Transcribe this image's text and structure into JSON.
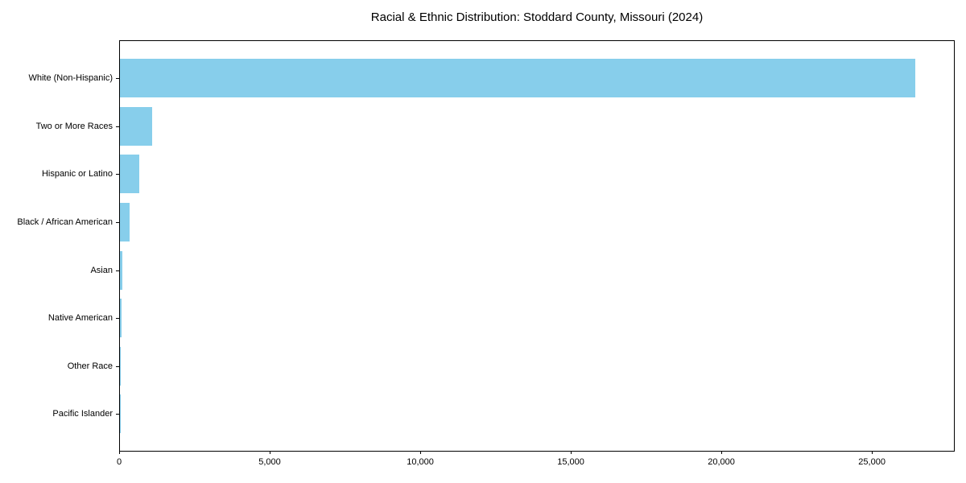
{
  "chart_data": {
    "type": "bar",
    "orientation": "horizontal",
    "title": "Racial & Ethnic Distribution: Stoddard County, Missouri (2024)",
    "categories": [
      "White (Non-Hispanic)",
      "Two or More Races",
      "Hispanic or Latino",
      "Black / African American",
      "Asian",
      "Native American",
      "Other Race",
      "Pacific Islander"
    ],
    "values": [
      26400,
      1060,
      635,
      330,
      90,
      55,
      30,
      10
    ],
    "xlabel": "",
    "ylabel": "",
    "xlim": [
      0,
      27750
    ],
    "x_ticks": [
      {
        "value": 0,
        "label": "0"
      },
      {
        "value": 5000,
        "label": "5,000"
      },
      {
        "value": 10000,
        "label": "10,000"
      },
      {
        "value": 15000,
        "label": "15,000"
      },
      {
        "value": 20000,
        "label": "20,000"
      },
      {
        "value": 25000,
        "label": "25,000"
      }
    ],
    "grid": false,
    "legend_position": "none",
    "bar_color": "#87CEEB",
    "axis_color": "#000000",
    "text_color": "#000000"
  }
}
